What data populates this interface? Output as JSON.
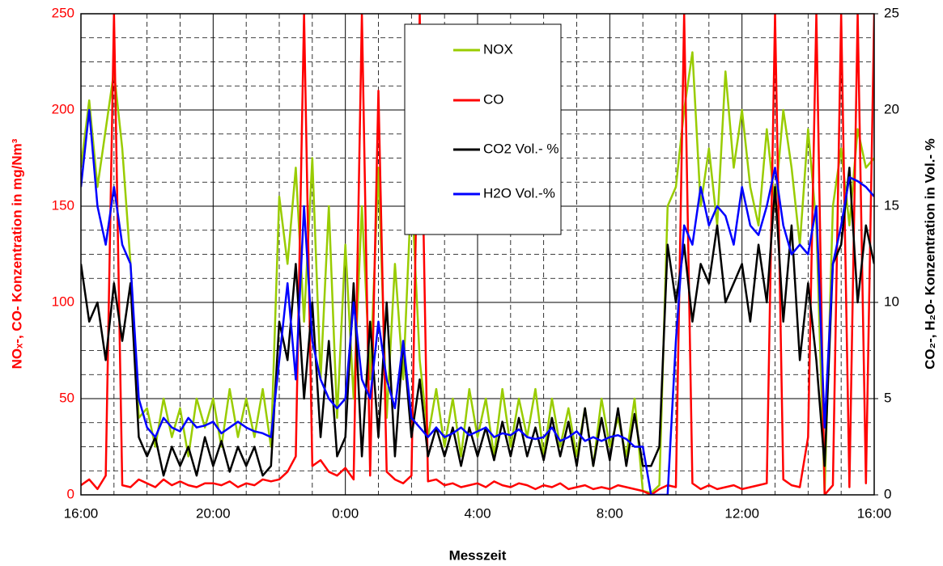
{
  "chart_data": {
    "type": "line",
    "xlabel": "Messzeit",
    "ylabel": "NOₓ-, CO- Konzentration in mg/Nm³",
    "y2label": "CO₂-, H₂O- Konzentration in Vol.- %",
    "x": [
      16,
      16.25,
      16.5,
      16.75,
      17,
      17.25,
      17.5,
      17.75,
      18,
      18.25,
      18.5,
      18.75,
      19,
      19.25,
      19.5,
      19.75,
      20,
      20.25,
      20.5,
      20.75,
      21,
      21.25,
      21.5,
      21.75,
      22,
      22.25,
      22.5,
      22.75,
      23,
      23.25,
      23.5,
      23.75,
      24,
      24.25,
      24.5,
      24.75,
      25,
      25.25,
      25.5,
      25.75,
      26,
      26.25,
      26.5,
      26.75,
      27,
      27.25,
      27.5,
      27.75,
      28,
      28.25,
      28.5,
      28.75,
      29,
      29.25,
      29.5,
      29.75,
      30,
      30.25,
      30.5,
      30.75,
      31,
      31.25,
      31.5,
      31.75,
      32,
      32.25,
      32.5,
      32.75,
      33,
      33.25,
      33.5,
      33.75,
      34,
      34.25,
      34.5,
      34.75,
      35,
      35.25,
      35.5,
      35.75,
      36,
      36.25,
      36.5,
      36.75,
      37,
      37.25,
      37.5,
      37.75,
      38,
      38.25,
      38.5,
      38.75,
      39,
      39.25,
      39.5,
      39.75,
      40
    ],
    "xlim": [
      16,
      40
    ],
    "xticks": [
      {
        "value": 16,
        "label": "16:00"
      },
      {
        "value": 20,
        "label": "20:00"
      },
      {
        "value": 24,
        "label": "0:00"
      },
      {
        "value": 28,
        "label": "4:00"
      },
      {
        "value": 32,
        "label": "8:00"
      },
      {
        "value": 36,
        "label": "12:00"
      },
      {
        "value": 40,
        "label": "16:00"
      }
    ],
    "ylim": [
      0,
      250
    ],
    "yticks": [
      0,
      50,
      100,
      150,
      200,
      250
    ],
    "y2lim": [
      0,
      25
    ],
    "y2ticks": [
      0,
      5,
      10,
      15,
      20,
      25
    ],
    "grid": true,
    "minor_divisions": 4,
    "legend": "top-center",
    "series": [
      {
        "name": "NOX",
        "color": "#99cc00",
        "values": [
          170,
          205,
          160,
          190,
          220,
          180,
          120,
          40,
          45,
          25,
          50,
          30,
          45,
          20,
          50,
          35,
          50,
          25,
          55,
          30,
          50,
          30,
          55,
          25,
          155,
          120,
          170,
          90,
          175,
          60,
          150,
          40,
          130,
          50,
          150,
          60,
          170,
          40,
          120,
          60,
          160,
          70,
          30,
          55,
          25,
          50,
          20,
          55,
          30,
          50,
          20,
          55,
          25,
          50,
          30,
          55,
          20,
          50,
          25,
          45,
          20,
          45,
          15,
          50,
          25,
          40,
          20,
          50,
          2,
          1,
          5,
          150,
          160,
          200,
          230,
          150,
          180,
          140,
          220,
          170,
          200,
          160,
          140,
          190,
          150,
          200,
          170,
          130,
          190,
          140,
          1,
          150,
          180,
          140,
          190,
          170,
          175
        ]
      },
      {
        "name": "CO",
        "color": "#ff0000",
        "values": [
          5,
          8,
          3,
          10,
          250,
          5,
          4,
          8,
          6,
          4,
          8,
          5,
          7,
          5,
          4,
          6,
          6,
          5,
          7,
          4,
          6,
          5,
          8,
          7,
          8,
          12,
          20,
          250,
          15,
          18,
          12,
          10,
          14,
          8,
          250,
          10,
          210,
          12,
          8,
          6,
          10,
          250,
          7,
          8,
          5,
          6,
          4,
          5,
          6,
          4,
          7,
          5,
          4,
          6,
          5,
          3,
          5,
          4,
          6,
          3,
          4,
          5,
          3,
          4,
          3,
          5,
          4,
          3,
          2,
          0,
          3,
          5,
          4,
          250,
          6,
          3,
          5,
          3,
          4,
          5,
          3,
          4,
          5,
          6,
          250,
          8,
          5,
          4,
          30,
          250,
          0,
          5,
          250,
          4,
          250,
          6,
          250
        ]
      },
      {
        "name": "CO2 Vol.- %",
        "color": "#000000",
        "axis": "y2",
        "values": [
          12,
          9,
          10,
          7,
          11,
          8,
          11,
          3,
          2,
          3,
          1,
          2.5,
          1.5,
          2.5,
          1,
          3,
          1.5,
          2.8,
          1.2,
          2.5,
          1.5,
          2.5,
          1,
          1.5,
          9,
          7,
          12,
          5,
          10,
          3,
          8,
          2,
          3,
          11,
          2,
          9,
          3,
          10,
          2,
          8,
          3,
          6,
          2,
          3.5,
          2,
          3.5,
          1.5,
          3.5,
          2,
          3.5,
          1.8,
          3.8,
          2,
          4,
          2,
          3.5,
          1.8,
          4,
          2,
          3.8,
          1.5,
          4.5,
          1.5,
          4,
          1.8,
          4.5,
          1.5,
          4.2,
          1.5,
          1.5,
          2.5,
          13,
          10,
          13,
          9,
          12,
          11,
          14,
          10,
          11,
          12,
          9,
          13,
          10,
          16,
          9,
          14,
          7,
          11,
          7,
          1.5,
          12,
          13,
          17,
          10,
          14,
          12
        ]
      },
      {
        "name": "H2O Vol.-%",
        "color": "#0000ff",
        "axis": "y2",
        "values": [
          16,
          20,
          15,
          13,
          16,
          13,
          12,
          5,
          3.5,
          3,
          4,
          3.5,
          3.3,
          4,
          3.5,
          3.6,
          3.8,
          3.2,
          3.5,
          3.8,
          3.5,
          3.3,
          3.2,
          3,
          7,
          11,
          6,
          15,
          8,
          6,
          5,
          4.5,
          5,
          10,
          6,
          5,
          9,
          6,
          4.5,
          8,
          4,
          3.5,
          3,
          3.5,
          3,
          3.2,
          3.5,
          3.1,
          3.3,
          3.5,
          3,
          3.2,
          3.1,
          3.4,
          3,
          2.9,
          3,
          3.5,
          2.8,
          3,
          3.3,
          2.8,
          3,
          2.8,
          3,
          3.1,
          2.9,
          2.5,
          2.5,
          0,
          0,
          0,
          8,
          14,
          13,
          16,
          14,
          15,
          14.5,
          13,
          16,
          14,
          13.5,
          15,
          17,
          14,
          12.5,
          13,
          12.5,
          15,
          3.5,
          12,
          14,
          16.5,
          16.3,
          16,
          15.5
        ]
      }
    ]
  }
}
